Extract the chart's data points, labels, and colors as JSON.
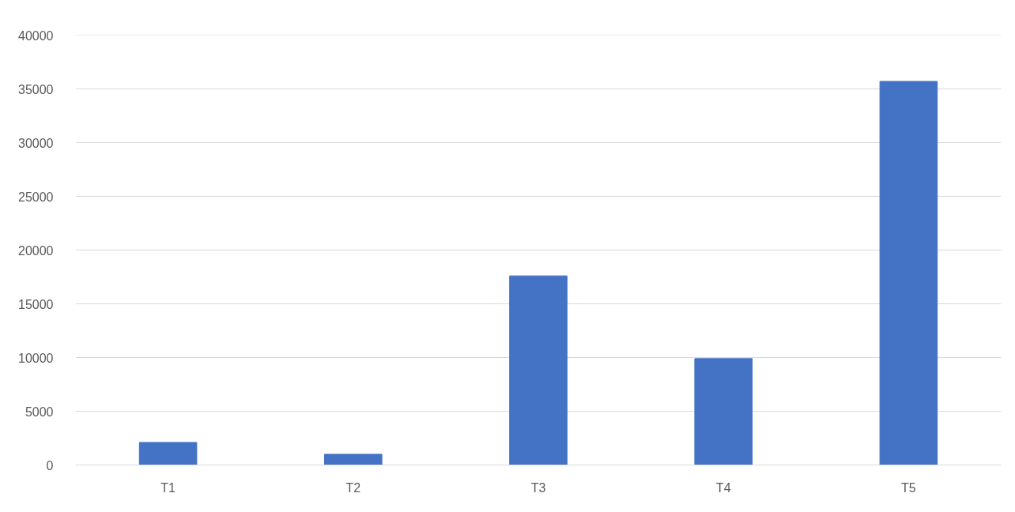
{
  "chart_data": {
    "type": "bar",
    "categories": [
      "T1",
      "T2",
      "T3",
      "T4",
      "T5"
    ],
    "values": [
      2100,
      1000,
      17600,
      9900,
      35700
    ],
    "color": "#4472c4",
    "ylim": [
      0,
      40000
    ],
    "yticks": [
      0,
      5000,
      10000,
      15000,
      20000,
      25000,
      30000,
      35000,
      40000
    ],
    "grid": "y"
  }
}
